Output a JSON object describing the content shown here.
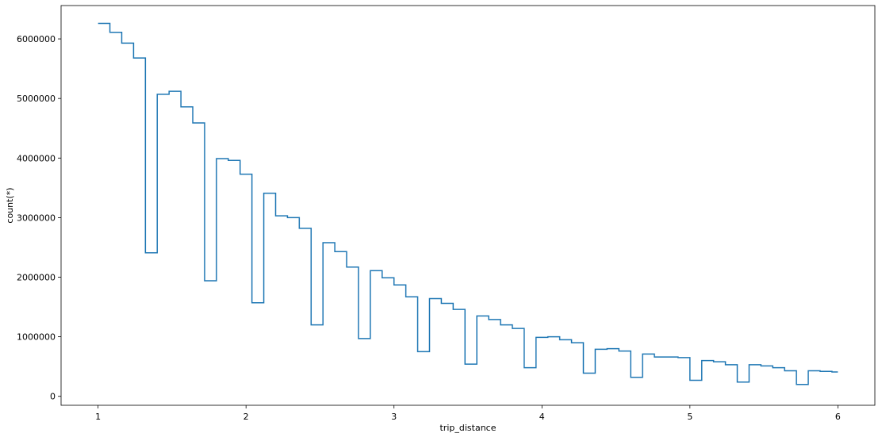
{
  "chart_data": {
    "type": "line",
    "style": "step-histogram",
    "xlabel": "trip_distance",
    "ylabel": "count(*)",
    "xlim": [
      0.75,
      6.25
    ],
    "ylim": [
      -150000,
      6560000
    ],
    "xticks": [
      1,
      2,
      3,
      4,
      5,
      6
    ],
    "xtick_labels": [
      "1",
      "2",
      "3",
      "4",
      "5",
      "6"
    ],
    "yticks": [
      0,
      1000000,
      2000000,
      3000000,
      4000000,
      5000000,
      6000000
    ],
    "ytick_labels": [
      "0",
      "1000000",
      "2000000",
      "3000000",
      "4000000",
      "5000000",
      "6000000"
    ],
    "grid": false,
    "line_color": "#1f77b4",
    "bin_width": 0.08,
    "x": [
      1.0,
      1.08,
      1.16,
      1.24,
      1.32,
      1.4,
      1.48,
      1.56,
      1.64,
      1.72,
      1.8,
      1.88,
      1.96,
      2.04,
      2.12,
      2.2,
      2.28,
      2.36,
      2.44,
      2.52,
      2.6,
      2.68,
      2.76,
      2.84,
      2.92,
      3.0,
      3.08,
      3.16,
      3.24,
      3.32,
      3.4,
      3.48,
      3.56,
      3.64,
      3.72,
      3.8,
      3.88,
      3.96,
      4.04,
      4.12,
      4.2,
      4.28,
      4.36,
      4.44,
      4.52,
      4.6,
      4.68,
      4.76,
      4.84,
      4.92,
      5.0,
      5.08,
      5.16,
      5.24,
      5.32,
      5.4,
      5.48,
      5.56,
      5.64,
      5.72,
      5.8,
      5.88,
      5.96
    ],
    "y": [
      6260000,
      6110000,
      5930000,
      5680000,
      2410000,
      5070000,
      5120000,
      4860000,
      4590000,
      1940000,
      3990000,
      3960000,
      3730000,
      1570000,
      3410000,
      3030000,
      3000000,
      2820000,
      1200000,
      2580000,
      2430000,
      2170000,
      970000,
      2110000,
      1990000,
      1870000,
      1670000,
      750000,
      1640000,
      1560000,
      1460000,
      540000,
      1350000,
      1290000,
      1200000,
      1140000,
      480000,
      990000,
      1000000,
      950000,
      900000,
      390000,
      790000,
      800000,
      760000,
      320000,
      710000,
      660000,
      660000,
      650000,
      270000,
      600000,
      580000,
      530000,
      240000,
      530000,
      510000,
      480000,
      430000,
      200000,
      430000,
      420000,
      410000
    ]
  }
}
